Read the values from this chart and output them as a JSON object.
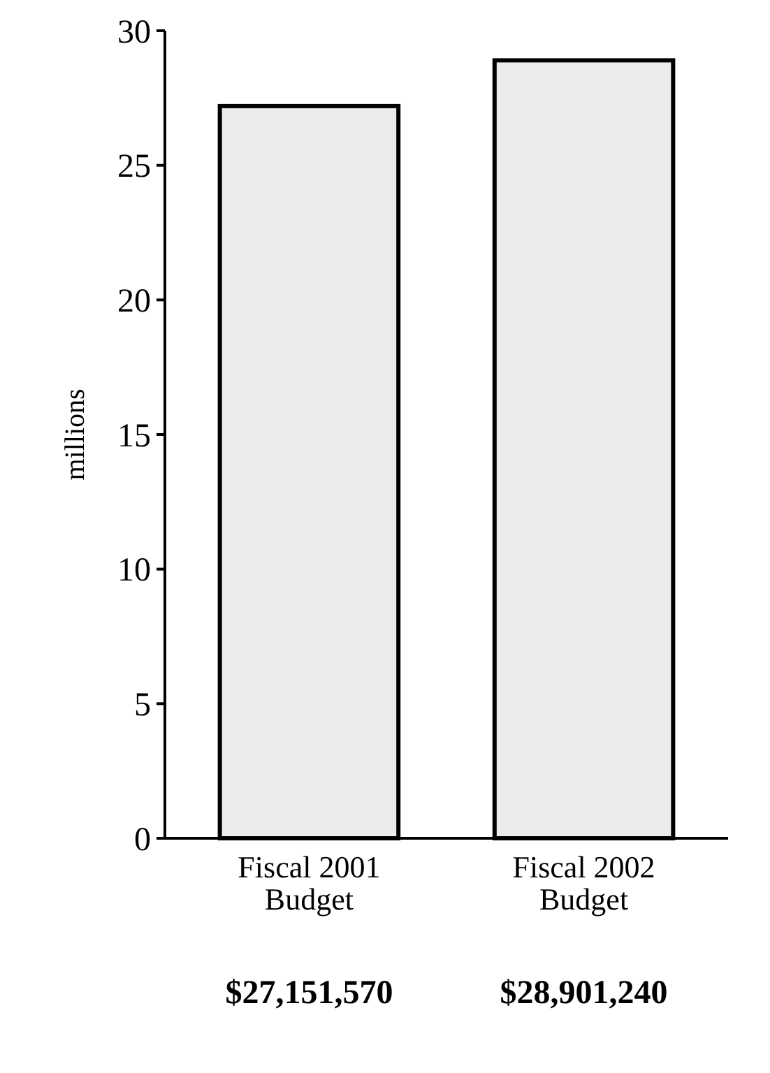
{
  "chart_data": {
    "type": "bar",
    "ylabel": "millions",
    "categories": [
      "Fiscal 2001\nBudget",
      "Fiscal 2002\nBudget"
    ],
    "values": [
      27.2,
      28.9
    ],
    "annotations": [
      "$27,151,570",
      "$28,901,240"
    ],
    "color": "#ececec",
    "ylim": [
      0,
      30
    ],
    "yticks": [
      0,
      5,
      10,
      15,
      20,
      25,
      30
    ]
  }
}
